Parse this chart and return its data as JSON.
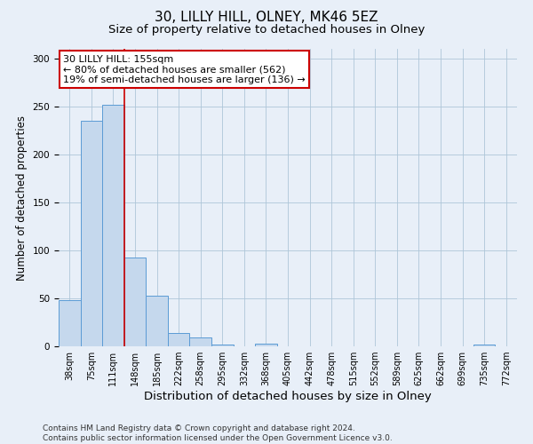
{
  "title": "30, LILLY HILL, OLNEY, MK46 5EZ",
  "subtitle": "Size of property relative to detached houses in Olney",
  "xlabel": "Distribution of detached houses by size in Olney",
  "ylabel": "Number of detached properties",
  "bar_labels": [
    "38sqm",
    "75sqm",
    "111sqm",
    "148sqm",
    "185sqm",
    "222sqm",
    "258sqm",
    "295sqm",
    "332sqm",
    "368sqm",
    "405sqm",
    "442sqm",
    "478sqm",
    "515sqm",
    "552sqm",
    "589sqm",
    "625sqm",
    "662sqm",
    "699sqm",
    "735sqm",
    "772sqm"
  ],
  "bar_values": [
    48,
    235,
    252,
    93,
    53,
    14,
    9,
    2,
    0,
    3,
    0,
    0,
    0,
    0,
    0,
    0,
    0,
    0,
    0,
    2,
    0
  ],
  "bar_color": "#c5d8ed",
  "bar_edge_color": "#5b9bd5",
  "vline_x": 3.0,
  "vline_color": "#cc0000",
  "annotation_text": "30 LILLY HILL: 155sqm\n← 80% of detached houses are smaller (562)\n19% of semi-detached houses are larger (136) →",
  "annotation_box_color": "#ffffff",
  "annotation_box_edge_color": "#cc0000",
  "ylim": [
    0,
    310
  ],
  "yticks": [
    0,
    50,
    100,
    150,
    200,
    250,
    300
  ],
  "footer_text": "Contains HM Land Registry data © Crown copyright and database right 2024.\nContains public sector information licensed under the Open Government Licence v3.0.",
  "bg_color": "#e8eff8",
  "plot_bg_color": "#e8eff8",
  "title_fontsize": 11,
  "subtitle_fontsize": 9.5,
  "xlabel_fontsize": 9.5,
  "ylabel_fontsize": 8.5,
  "footer_fontsize": 6.5,
  "annot_fontsize": 8,
  "tick_fontsize": 7
}
